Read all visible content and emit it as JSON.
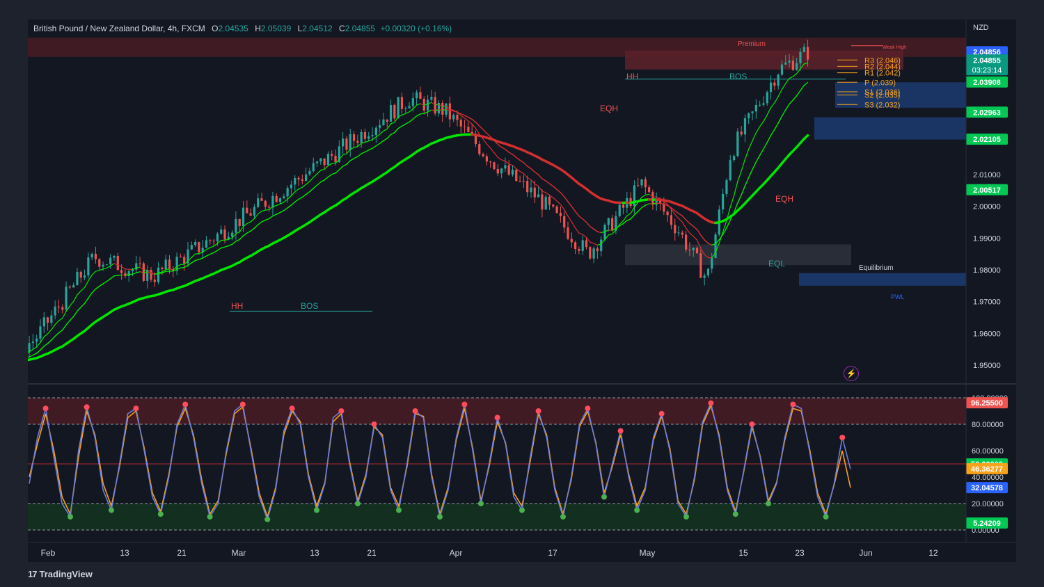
{
  "legend": {
    "symbol": "British Pound / New Zealand Dollar, 4h, FXCM",
    "open_label": "O",
    "open": "2.04535",
    "high_label": "H",
    "high": "2.05039",
    "low_label": "L",
    "low": "2.04512",
    "close_label": "C",
    "close": "2.04855",
    "change": "+0.00320 (+0.16%)"
  },
  "currency": "NZD",
  "brand": {
    "name": "TradingView"
  },
  "colors": {
    "bull": "#26a69a",
    "bear": "#ef5350",
    "ma_green": "#00e600",
    "ma_red": "#d32f2f",
    "premium_zone": "#4a1c24",
    "discount_zone": "#13321f",
    "stoch_k": "#6f7fd8",
    "stoch_d": "#f7a21b"
  },
  "icons": [
    "tradingview-logo-icon",
    "lightning-icon"
  ],
  "chart_data": [
    {
      "type": "candlestick",
      "title": "",
      "x_ticks": [
        "Feb",
        "13",
        "21",
        "Mar",
        "13",
        "21",
        "Apr",
        "17",
        "May",
        "15",
        "23",
        "Jun",
        "12"
      ],
      "ylim": [
        1.945,
        2.057
      ],
      "y_ticks": [
        "2.01000",
        "2.00000",
        "1.99000",
        "1.98000",
        "1.97000",
        "1.96000",
        "1.95000"
      ],
      "price_badges": [
        {
          "text": "2.04856",
          "color": "#2962ff"
        },
        {
          "text": "2.04855",
          "sub": "03:23:14",
          "color": "#089981"
        },
        {
          "text": "2.03908",
          "color": "#00c853"
        },
        {
          "text": "2.02963",
          "color": "#00c853"
        },
        {
          "text": "2.02105",
          "color": "#00c853"
        },
        {
          "text": "2.00517",
          "color": "#00c853"
        }
      ],
      "close_path": [
        {
          "t": 0.1,
          "v": 1.946
        },
        {
          "t": 0.2,
          "v": 1.967
        },
        {
          "t": 0.28,
          "v": 1.948
        },
        {
          "t": 0.35,
          "v": 1.947
        },
        {
          "t": 0.45,
          "v": 1.958
        },
        {
          "t": 0.55,
          "v": 1.984
        },
        {
          "t": 0.65,
          "v": 1.978
        },
        {
          "t": 0.75,
          "v": 1.99
        },
        {
          "t": 0.85,
          "v": 2.003
        },
        {
          "t": 0.95,
          "v": 2.016
        },
        {
          "t": 1.08,
          "v": 2.034
        },
        {
          "t": 1.14,
          "v": 2.03
        },
        {
          "t": 1.22,
          "v": 2.014
        },
        {
          "t": 1.3,
          "v": 2.002
        },
        {
          "t": 1.38,
          "v": 1.985
        },
        {
          "t": 1.47,
          "v": 2.007
        },
        {
          "t": 1.53,
          "v": 1.993
        },
        {
          "t": 1.58,
          "v": 1.977
        },
        {
          "t": 1.62,
          "v": 2.017
        },
        {
          "t": 1.7,
          "v": 2.043
        },
        {
          "t": 1.75,
          "v": 2.0486
        }
      ],
      "pivots": [
        {
          "label": "R3 (2.046)",
          "value": 2.046
        },
        {
          "label": "R2 (2.044)",
          "value": 2.044
        },
        {
          "label": "R1 (2.042)",
          "value": 2.042
        },
        {
          "label": "P (2.039)",
          "value": 2.039
        },
        {
          "label": "S1 (2.036)",
          "value": 2.036
        },
        {
          "label": "S2 (2.035)",
          "value": 2.035
        },
        {
          "label": "S3 (2.032)",
          "value": 2.032
        }
      ],
      "annotations": [
        {
          "text": "Premium",
          "color": "#ef5350"
        },
        {
          "text": "Weak High",
          "color": "#ef5350"
        },
        {
          "text": "HH",
          "color": "#ef5350"
        },
        {
          "text": "BOS",
          "color": "#26a69a"
        },
        {
          "text": "EQH",
          "color": "#ef5350"
        },
        {
          "text": "EQL",
          "color": "#26a69a"
        },
        {
          "text": "Equilibrium",
          "color": "#d1d4dc"
        },
        {
          "text": "PWL",
          "color": "#2962ff"
        },
        {
          "text": "HH",
          "color": "#ef5350"
        },
        {
          "text": "BOS",
          "color": "#26a69a"
        },
        {
          "text": "EQH",
          "color": "#ef5350"
        }
      ]
    },
    {
      "type": "line",
      "title": "",
      "ylim": [
        0,
        100
      ],
      "y_ticks": [
        "100.00000",
        "80.00000",
        "60.00000",
        "40.00000",
        "20.00000",
        "0.00000"
      ],
      "levels": [
        80,
        50,
        20
      ],
      "series": [
        {
          "values": [
            35,
            70,
            92,
            55,
            20,
            10,
            60,
            93,
            70,
            30,
            15,
            50,
            88,
            92,
            60,
            25,
            12,
            40,
            80,
            95,
            70,
            35,
            10,
            20,
            60,
            90,
            95,
            60,
            25,
            8,
            30,
            75,
            92,
            80,
            40,
            15,
            35,
            85,
            90,
            50,
            20,
            40,
            80,
            70,
            30,
            15,
            50,
            90,
            85,
            40,
            10,
            30,
            70,
            95,
            60,
            20,
            50,
            85,
            65,
            25,
            15,
            55,
            90,
            70,
            30,
            10,
            40,
            80,
            92,
            65,
            25,
            50,
            75,
            40,
            15,
            30,
            70,
            88,
            60,
            20,
            10,
            40,
            82,
            96,
            70,
            30,
            12,
            45,
            80,
            55,
            20,
            35,
            70,
            95,
            92,
            60,
            25,
            10,
            35,
            70,
            46
          ]
        },
        {
          "values": [
            40,
            65,
            88,
            60,
            25,
            12,
            55,
            90,
            72,
            35,
            18,
            48,
            85,
            90,
            62,
            28,
            14,
            42,
            78,
            92,
            72,
            38,
            12,
            22,
            58,
            88,
            93,
            62,
            28,
            10,
            32,
            72,
            90,
            82,
            42,
            18,
            36,
            82,
            88,
            52,
            22,
            42,
            78,
            72,
            32,
            18,
            48,
            88,
            86,
            42,
            12,
            32,
            68,
            92,
            62,
            22,
            48,
            82,
            66,
            28,
            18,
            52,
            88,
            72,
            32,
            12,
            38,
            78,
            90,
            66,
            28,
            48,
            72,
            42,
            18,
            32,
            68,
            86,
            62,
            22,
            12,
            38,
            80,
            94,
            72,
            32,
            14,
            44,
            78,
            56,
            22,
            36,
            68,
            92,
            90,
            62,
            28,
            12,
            34,
            60,
            32
          ]
        }
      ],
      "value_badges": [
        {
          "text": "96.25500",
          "color": "#ef5350"
        },
        {
          "text": "50.00000",
          "color": "#00c853"
        },
        {
          "text": "46.36277",
          "color": "#f7a21b"
        },
        {
          "text": "32.04578",
          "color": "#2962ff"
        },
        {
          "text": "5.24209",
          "color": "#00c853"
        }
      ]
    }
  ]
}
